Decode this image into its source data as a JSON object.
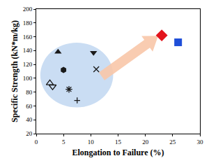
{
  "chart_data": {
    "type": "scatter",
    "x_label": "Elongation to Failure (%)",
    "y_label": "Specific Strength (kN*m/kg)",
    "xlim": [
      0,
      30
    ],
    "xticks": [
      0,
      5,
      10,
      15,
      20,
      25,
      30
    ],
    "ylim": [
      20,
      200
    ],
    "yticks": [
      20,
      40,
      60,
      80,
      100,
      120,
      140,
      160,
      180,
      200
    ],
    "grid": false,
    "series": [
      {
        "x": [
          4
        ],
        "values": [
          138
        ],
        "color": "#1a1a1a",
        "marker": "triangle-up"
      },
      {
        "x": [
          10.5
        ],
        "values": [
          137
        ],
        "color": "#1a1a1a",
        "marker": "triangle-down"
      },
      {
        "x": [
          5
        ],
        "values": [
          112
        ],
        "color": "#1a1a1a",
        "marker": "hexagon"
      },
      {
        "x": [
          11
        ],
        "values": [
          113
        ],
        "color": "#1a1a1a",
        "marker": "x-thin-open"
      },
      {
        "x": [
          2.5
        ],
        "values": [
          93
        ],
        "color": "#1a1a1a",
        "marker": "triangle-up-open"
      },
      {
        "x": [
          3
        ],
        "values": [
          88
        ],
        "color": "#1a1a1a",
        "marker": "triangle-down-open"
      },
      {
        "x": [
          6
        ],
        "values": [
          84
        ],
        "color": "#1a1a1a",
        "marker": "asterisk-open"
      },
      {
        "x": [
          7.5
        ],
        "values": [
          68
        ],
        "color": "#1a1a1a",
        "marker": "cross-thin-open"
      },
      {
        "x": [
          23
        ],
        "values": [
          162
        ],
        "color": "#e3141c",
        "marker": "diamond"
      },
      {
        "x": [
          26
        ],
        "values": [
          152
        ],
        "color": "#1f4fd8",
        "marker": "square"
      }
    ]
  }
}
